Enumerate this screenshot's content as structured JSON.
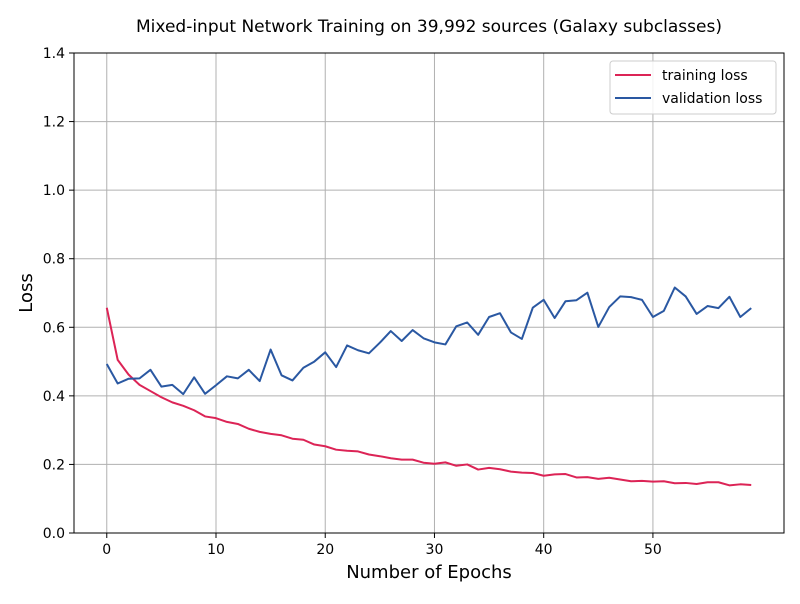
{
  "chart_data": {
    "type": "line",
    "title": "Mixed-input Network Training on 39,992 sources (Galaxy subclasses)",
    "xlabel": "Number of Epochs",
    "ylabel": "Loss",
    "xlim": [
      -3,
      62
    ],
    "ylim": [
      0,
      1.4
    ],
    "xticks": [
      0,
      10,
      20,
      30,
      40,
      50
    ],
    "xtick_labels": [
      "0",
      "10",
      "20",
      "30",
      "40",
      "50"
    ],
    "yticks": [
      0,
      0.2,
      0.4,
      0.6,
      0.8,
      1.0,
      1.2,
      1.4
    ],
    "ytick_labels": [
      "0.0",
      "0.2",
      "0.4",
      "0.6",
      "0.8",
      "1.0",
      "1.2",
      "1.4"
    ],
    "grid": true,
    "legend_position": "top-right",
    "x": [
      0,
      1,
      2,
      3,
      4,
      5,
      6,
      7,
      8,
      9,
      10,
      11,
      12,
      13,
      14,
      15,
      16,
      17,
      18,
      19,
      20,
      21,
      22,
      23,
      24,
      25,
      26,
      27,
      28,
      29,
      30,
      31,
      32,
      33,
      34,
      35,
      36,
      37,
      38,
      39,
      40,
      41,
      42,
      43,
      44,
      45,
      46,
      47,
      48,
      49,
      50,
      51,
      52,
      53,
      54,
      55,
      56,
      57,
      58,
      59
    ],
    "series": [
      {
        "name": "training loss",
        "color": "#dc2456",
        "values": [
          0.657,
          0.505,
          0.462,
          0.432,
          0.414,
          0.396,
          0.381,
          0.371,
          0.358,
          0.34,
          0.335,
          0.324,
          0.318,
          0.304,
          0.295,
          0.289,
          0.285,
          0.275,
          0.272,
          0.258,
          0.253,
          0.243,
          0.24,
          0.238,
          0.229,
          0.224,
          0.218,
          0.214,
          0.214,
          0.205,
          0.202,
          0.206,
          0.196,
          0.2,
          0.185,
          0.19,
          0.186,
          0.179,
          0.176,
          0.175,
          0.167,
          0.171,
          0.172,
          0.162,
          0.163,
          0.158,
          0.161,
          0.156,
          0.151,
          0.152,
          0.15,
          0.151,
          0.145,
          0.146,
          0.143,
          0.148,
          0.148,
          0.139,
          0.142,
          0.14
        ]
      },
      {
        "name": "validation loss",
        "color": "#2a58a2",
        "values": [
          0.493,
          0.436,
          0.45,
          0.451,
          0.476,
          0.427,
          0.432,
          0.405,
          0.454,
          0.406,
          0.431,
          0.457,
          0.451,
          0.476,
          0.443,
          0.535,
          0.46,
          0.445,
          0.482,
          0.5,
          0.527,
          0.484,
          0.547,
          0.533,
          0.524,
          0.555,
          0.589,
          0.56,
          0.592,
          0.568,
          0.556,
          0.55,
          0.603,
          0.614,
          0.578,
          0.63,
          0.641,
          0.585,
          0.566,
          0.657,
          0.68,
          0.627,
          0.676,
          0.679,
          0.701,
          0.601,
          0.659,
          0.69,
          0.688,
          0.68,
          0.63,
          0.648,
          0.716,
          0.69,
          0.639,
          0.662,
          0.656,
          0.689,
          0.63,
          0.656
        ]
      }
    ]
  }
}
